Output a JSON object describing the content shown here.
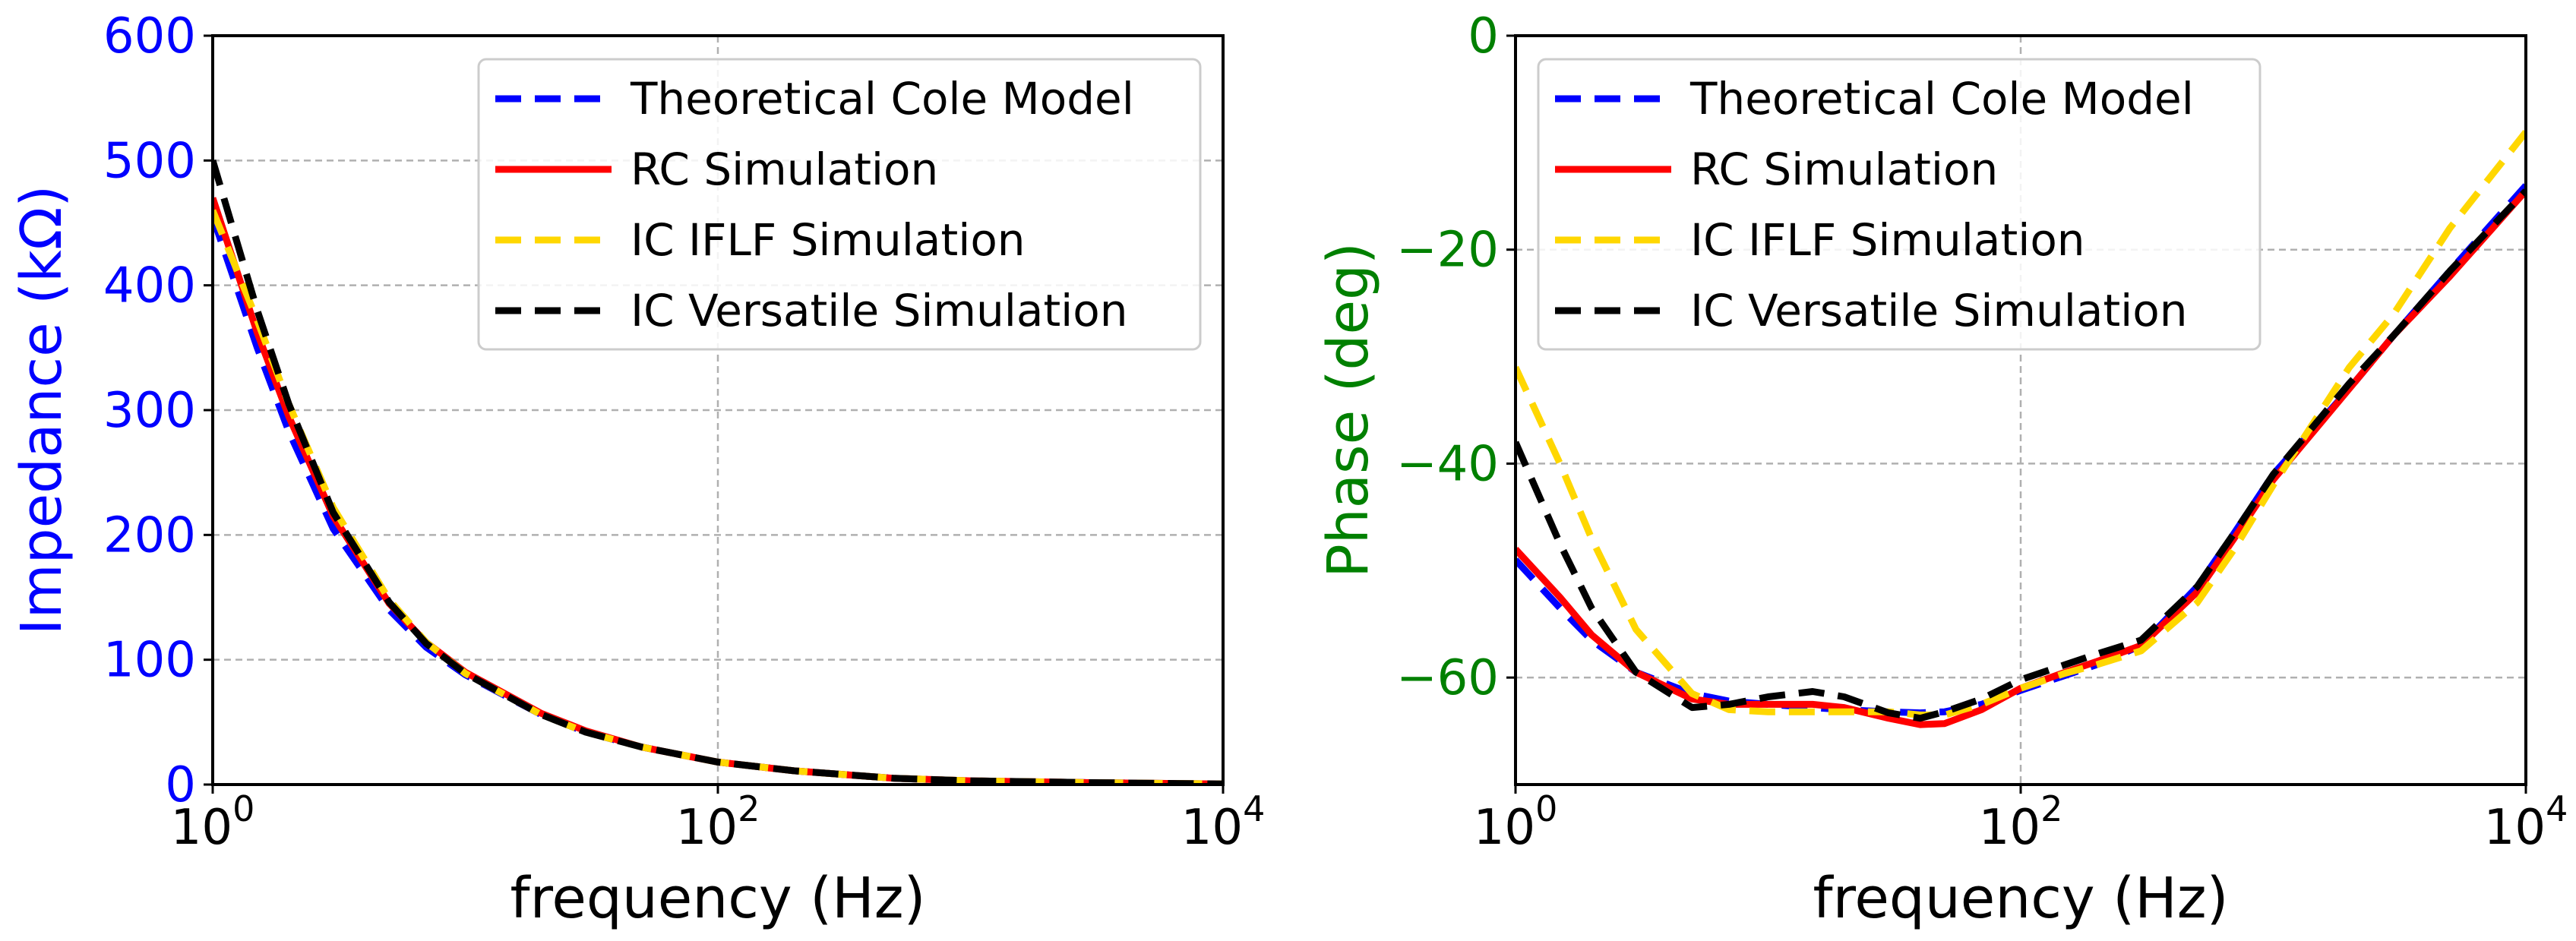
{
  "colors": {
    "theoretical": "#0000ff",
    "rc": "#ff0000",
    "iflf": "#ffd700",
    "versatile": "#000000",
    "left_axis": "#0000ff",
    "right_axis": "#008000"
  },
  "chart_data": [
    {
      "type": "line",
      "title": "",
      "xlabel": "frequency (Hz)",
      "ylabel": "Impedance (kΩ)",
      "xscale": "log",
      "xlim": [
        1,
        10000
      ],
      "ylim": [
        0,
        600
      ],
      "xticks": [
        {
          "value": 1,
          "base": "10",
          "exp": "0"
        },
        {
          "value": 100,
          "base": "10",
          "exp": "2"
        },
        {
          "value": 10000,
          "base": "10",
          "exp": "4"
        }
      ],
      "yticks": [
        {
          "value": 0,
          "label": "0"
        },
        {
          "value": 100,
          "label": "100"
        },
        {
          "value": 200,
          "label": "200"
        },
        {
          "value": 300,
          "label": "300"
        },
        {
          "value": 400,
          "label": "400"
        },
        {
          "value": 500,
          "label": "500"
        },
        {
          "value": 600,
          "label": "600"
        }
      ],
      "grid": true,
      "legend_position": "top-right",
      "series": [
        {
          "name": "Theoretical Cole Model",
          "key": "theoretical",
          "style": "dashed",
          "x": [
            1,
            1.5,
            2,
            3,
            5,
            7,
            10,
            20,
            30,
            50,
            100,
            200,
            500,
            1000,
            3000,
            10000
          ],
          "y": [
            455,
            350,
            283,
            205,
            140,
            110,
            88,
            56,
            42,
            30,
            18,
            11,
            5,
            3,
            1.5,
            0.5
          ]
        },
        {
          "name": "RC Simulation",
          "key": "rc",
          "style": "solid",
          "x": [
            1,
            1.5,
            2,
            3,
            5,
            7,
            10,
            20,
            30,
            50,
            100,
            200,
            500,
            1000,
            3000,
            10000
          ],
          "y": [
            470,
            362,
            295,
            215,
            145,
            114,
            90,
            57,
            43,
            30,
            18,
            11,
            5,
            3,
            1.5,
            0.5
          ]
        },
        {
          "name": "IC IFLF Simulation",
          "key": "iflf",
          "style": "dashed",
          "x": [
            1,
            1.5,
            2,
            3,
            5,
            7,
            10,
            20,
            30,
            50,
            100,
            200,
            500,
            1000,
            3000,
            10000
          ],
          "y": [
            460,
            372,
            305,
            222,
            148,
            114,
            89,
            56,
            42,
            30,
            18,
            11,
            5,
            3,
            1.5,
            0.5
          ]
        },
        {
          "name": "IC Versatile Simulation",
          "key": "versatile",
          "style": "dashed",
          "x": [
            1,
            1.5,
            2,
            3,
            5,
            7,
            10,
            20,
            30,
            50,
            100,
            200,
            500,
            1000,
            3000,
            10000
          ],
          "y": [
            500,
            380,
            305,
            218,
            146,
            113,
            89,
            56,
            42,
            30,
            18,
            11,
            5,
            3,
            1.5,
            0.5
          ]
        }
      ]
    },
    {
      "type": "line",
      "title": "",
      "xlabel": "frequency (Hz)",
      "ylabel": "Phase (deg)",
      "xscale": "log",
      "xlim": [
        1,
        10000
      ],
      "ylim": [
        -70,
        0
      ],
      "xticks": [
        {
          "value": 1,
          "base": "10",
          "exp": "0"
        },
        {
          "value": 100,
          "base": "10",
          "exp": "2"
        },
        {
          "value": 10000,
          "base": "10",
          "exp": "4"
        }
      ],
      "yticks": [
        {
          "value": 0,
          "label": "0"
        },
        {
          "value": -20,
          "label": "−20"
        },
        {
          "value": -40,
          "label": "−40"
        },
        {
          "value": -60,
          "label": "−60"
        }
      ],
      "grid": true,
      "legend_position": "top-left",
      "series": [
        {
          "name": "Theoretical Cole Model",
          "key": "theoretical",
          "style": "dashed",
          "x": [
            1,
            1.5,
            2,
            3,
            5,
            7,
            10,
            15,
            20,
            30,
            40,
            50,
            70,
            100,
            150,
            200,
            300,
            500,
            700,
            1000,
            2000,
            3000,
            5000,
            10000
          ],
          "y": [
            -49,
            -53.5,
            -56.5,
            -59.5,
            -61.5,
            -62.2,
            -62.5,
            -62.8,
            -63,
            -63.2,
            -63.3,
            -63.2,
            -62.5,
            -61.2,
            -59.8,
            -58.8,
            -57,
            -51.5,
            -46.5,
            -41,
            -33,
            -28,
            -22,
            -14
          ]
        },
        {
          "name": "RC Simulation",
          "key": "rc",
          "style": "solid",
          "x": [
            1,
            1.5,
            2,
            3,
            5,
            7,
            10,
            15,
            20,
            30,
            40,
            50,
            70,
            100,
            150,
            200,
            300,
            500,
            700,
            1000,
            2000,
            3000,
            5000,
            10000
          ],
          "y": [
            -48,
            -52.5,
            -56,
            -59.5,
            -62,
            -62.5,
            -62.5,
            -62.5,
            -62.8,
            -63.8,
            -64.4,
            -64.3,
            -63,
            -61,
            -59.5,
            -58.5,
            -57,
            -52,
            -47,
            -41.5,
            -33,
            -28,
            -22.5,
            -14.5
          ]
        },
        {
          "name": "IC IFLF Simulation",
          "key": "iflf",
          "style": "dashed",
          "x": [
            1,
            1.5,
            2,
            3,
            5,
            7,
            10,
            15,
            20,
            30,
            40,
            50,
            70,
            100,
            150,
            200,
            300,
            500,
            700,
            1000,
            2000,
            3000,
            5000,
            10000
          ],
          "y": [
            -31,
            -40,
            -47,
            -55.5,
            -61.5,
            -63,
            -63.2,
            -63.2,
            -63.2,
            -63.2,
            -63.5,
            -63.5,
            -62.5,
            -61,
            -59.6,
            -58.8,
            -57.5,
            -53,
            -48,
            -42,
            -31,
            -26,
            -18,
            -9
          ]
        },
        {
          "name": "IC Versatile Simulation",
          "key": "versatile",
          "style": "dashed",
          "x": [
            1,
            1.5,
            2,
            3,
            5,
            7,
            10,
            15,
            20,
            30,
            40,
            50,
            70,
            100,
            150,
            200,
            300,
            500,
            700,
            1000,
            2000,
            3000,
            5000,
            10000
          ],
          "y": [
            -38,
            -47.5,
            -53.5,
            -59.5,
            -62.8,
            -62.5,
            -61.8,
            -61.3,
            -61.8,
            -63.3,
            -63.8,
            -63.2,
            -62,
            -60.2,
            -58.8,
            -57.8,
            -56.5,
            -51.5,
            -46.5,
            -41,
            -32.5,
            -28,
            -22,
            -14.5
          ]
        }
      ]
    }
  ]
}
